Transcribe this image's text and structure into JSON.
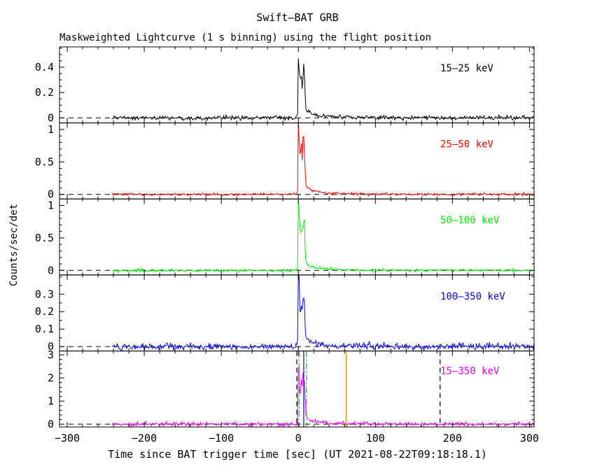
{
  "chart_data": {
    "type": "line",
    "title": "Swift–BAT GRB",
    "subtitle": "Maskweighted Lightcurve (1 s binning) using the flight position",
    "xlabel": "Time since BAT trigger time [sec] (UT 2021-08-22T09:18:18.1)",
    "ylabel": "Counts/sec/det",
    "x_range": [
      -310,
      306
    ],
    "x_ticks": [
      -300,
      -200,
      -100,
      0,
      100,
      200,
      300
    ],
    "x_minor_step": 20,
    "data_start_t": -242,
    "data_end_t": 306,
    "grid": false,
    "frame_color": "#000000",
    "zero_line_style": "dashed",
    "panels": [
      {
        "label": "15–25 keV",
        "color": "#000000",
        "ylim": [
          -0.04,
          0.56
        ],
        "yticks": [
          0,
          0.2,
          0.4
        ],
        "y_minor_step": 0.05,
        "peak": 0.55,
        "noise_sigma": 0.008
      },
      {
        "label": "25–50 keV",
        "color": "#ff0000",
        "ylim": [
          -0.07,
          1.1
        ],
        "yticks": [
          0,
          0.5,
          1
        ],
        "y_minor_step": 0.1,
        "peak": 1.18,
        "noise_sigma": 0.01
      },
      {
        "label": "50–100 keV",
        "color": "#00ee00",
        "ylim": [
          -0.07,
          1.1
        ],
        "yticks": [
          0,
          0.5,
          1
        ],
        "y_minor_step": 0.1,
        "peak": 1.12,
        "noise_sigma": 0.01
      },
      {
        "label": "100–350 keV",
        "color": "#0000ff",
        "ylim": [
          -0.025,
          0.41
        ],
        "yticks": [
          0,
          0.1,
          0.2,
          0.3
        ],
        "y_minor_step": 0.05,
        "peak": 0.45,
        "noise_sigma": 0.009
      },
      {
        "label": "15–350 keV",
        "color": "#ff00ff",
        "ylim": [
          -0.12,
          3.17
        ],
        "yticks": [
          0,
          1,
          2,
          3
        ],
        "y_minor_step": 0.2,
        "peak": 3.05,
        "noise_sigma": 0.04
      }
    ],
    "burst_profile_rel": [
      [
        -3,
        0
      ],
      [
        -2,
        0.01
      ],
      [
        -1,
        0.05
      ],
      [
        -0.6,
        0.25
      ],
      [
        -0.3,
        0.6
      ],
      [
        0,
        1.0
      ],
      [
        0.4,
        0.97
      ],
      [
        1,
        0.82
      ],
      [
        1.5,
        0.6
      ],
      [
        2,
        0.52
      ],
      [
        2.5,
        0.56
      ],
      [
        3,
        0.5
      ],
      [
        3.5,
        0.58
      ],
      [
        4,
        0.62
      ],
      [
        4.5,
        0.55
      ],
      [
        5,
        0.5
      ],
      [
        5.5,
        0.56
      ],
      [
        6,
        0.63
      ],
      [
        6.5,
        0.68
      ],
      [
        7,
        0.71
      ],
      [
        7.5,
        0.66
      ],
      [
        8,
        0.6
      ],
      [
        8.3,
        0.5
      ],
      [
        8.7,
        0.38
      ],
      [
        9,
        0.28
      ],
      [
        9.5,
        0.18
      ],
      [
        10,
        0.13
      ],
      [
        11,
        0.1
      ],
      [
        12,
        0.085
      ],
      [
        14,
        0.07
      ],
      [
        17,
        0.055
      ],
      [
        20,
        0.045
      ],
      [
        25,
        0.035
      ],
      [
        30,
        0.028
      ],
      [
        40,
        0.02
      ],
      [
        50,
        0.014
      ],
      [
        60,
        0.01
      ],
      [
        80,
        0.006
      ],
      [
        100,
        0.004
      ],
      [
        130,
        0.002
      ],
      [
        180,
        0.001
      ],
      [
        306,
        0.0005
      ]
    ],
    "markers": [
      {
        "type": "vline",
        "panel": 4,
        "t": -2,
        "style": "dashed",
        "color": "#000000"
      },
      {
        "type": "vline",
        "panel": 4,
        "t": 1,
        "style": "dashdot",
        "color": "#00cc00"
      },
      {
        "type": "vline",
        "panel": 4,
        "t": 7,
        "style": "solid",
        "color": "#0000ff"
      },
      {
        "type": "vline",
        "panel": 4,
        "t": 10.5,
        "style": "dashdot",
        "color": "#00cc00"
      },
      {
        "type": "vline",
        "panel": 4,
        "t": 62,
        "style": "solid",
        "color": "#ff8800"
      },
      {
        "type": "vline",
        "panel": 4,
        "t": 184,
        "style": "dashed",
        "color": "#000000"
      }
    ]
  }
}
